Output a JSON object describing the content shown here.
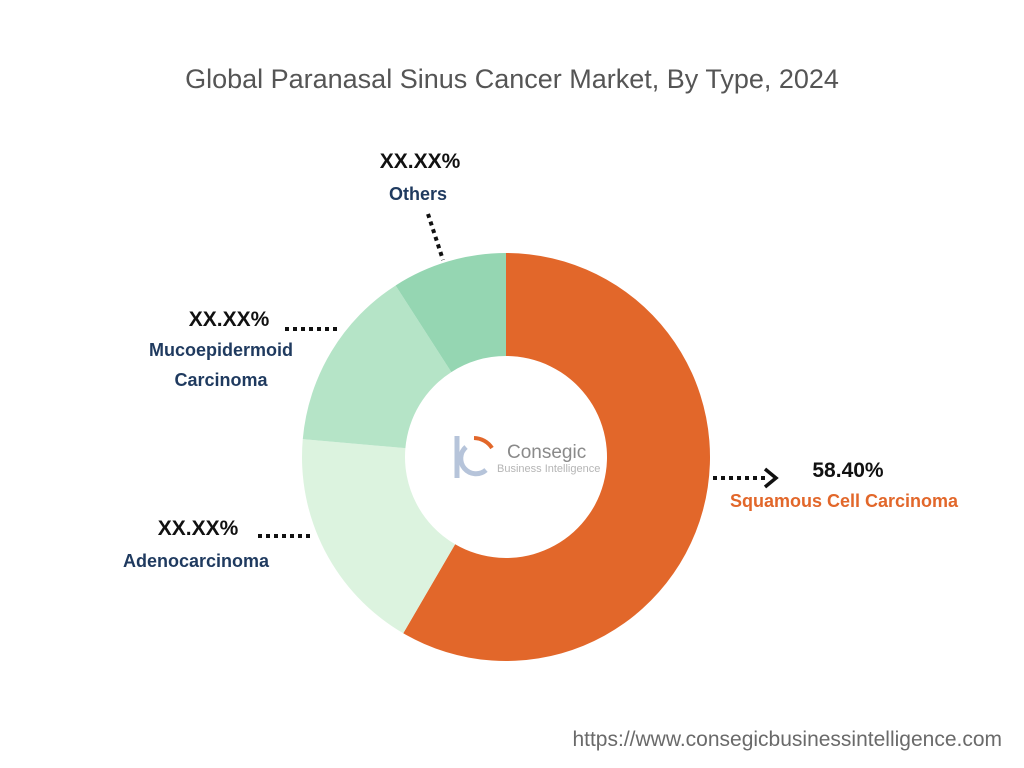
{
  "chart_data": {
    "type": "pie",
    "variant": "donut",
    "title": "Global Paranasal Sinus Cancer Market, By Type, 2024",
    "slices": [
      {
        "label": "Squamous Cell Carcinoma",
        "value": 58.4,
        "value_label": "58.40%",
        "color": "#e2672a"
      },
      {
        "label": "Adenocarcinoma",
        "value": 18.0,
        "value_label": "XX.XX%",
        "color": "#dcf3df"
      },
      {
        "label": "Mucoepidermoid Carcinoma",
        "value": 14.5,
        "value_label": "XX.XX%",
        "color": "#b5e4c7"
      },
      {
        "label": "Others",
        "value": 9.1,
        "value_label": "XX.XX%",
        "color": "#95d6b2"
      }
    ]
  },
  "labels": {
    "squamous": {
      "pct": "58.40%",
      "name": "Squamous Cell Carcinoma"
    },
    "adeno": {
      "pct": "XX.XX%",
      "name": "Adenocarcinoma"
    },
    "muco": {
      "pct": "XX.XX%",
      "name_line1": "Mucoepidermoid",
      "name_line2": "Carcinoma"
    },
    "others": {
      "pct": "XX.XX%",
      "name": "Others"
    }
  },
  "logo": {
    "name": "Consegic",
    "subtitle": "Business Intelligence"
  },
  "source_url": "https://www.consegicbusinessintelligence.com",
  "colors": {
    "accent": "#e2672a",
    "label_navy": "#1f3a5f"
  }
}
